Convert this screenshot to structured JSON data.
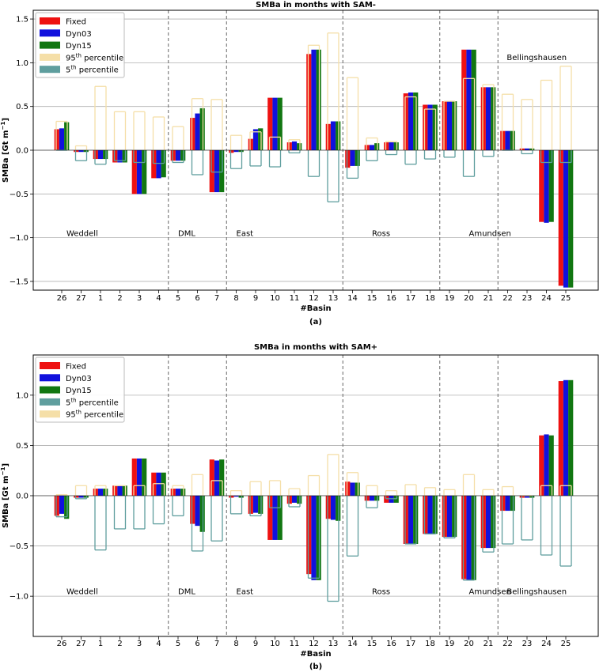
{
  "chart_data": [
    {
      "type": "bar",
      "panel_label": "(a)",
      "title": "SMBa in months with SAM-",
      "xlabel": "#Basin",
      "ylabel": "SMBa [Gt m",
      "ylabel_sup": "−1",
      "ylabel_close": "]",
      "ylim": [
        -1.6,
        1.6
      ],
      "yticks": [
        -1.5,
        -1.0,
        -0.5,
        0.0,
        0.5,
        1.0,
        1.5
      ],
      "ytick_labels": [
        "−1.5",
        "−1.0",
        "−0.5",
        "0.0",
        "0.5",
        "1.0",
        "1.5"
      ],
      "grid": "horizontal",
      "legend_position": "top-left",
      "categories": [
        "26",
        "27",
        "1",
        "2",
        "3",
        "4",
        "5",
        "6",
        "7",
        "8",
        "9",
        "10",
        "11",
        "12",
        "13",
        "14",
        "15",
        "16",
        "17",
        "18",
        "19",
        "20",
        "21",
        "22",
        "23",
        "24",
        "25"
      ],
      "series": [
        {
          "name": "Fixed",
          "color": "#ee1111",
          "values": [
            0.24,
            -0.02,
            -0.1,
            -0.14,
            -0.5,
            -0.32,
            -0.12,
            0.37,
            -0.48,
            -0.03,
            0.13,
            0.6,
            0.09,
            1.1,
            0.3,
            -0.2,
            0.06,
            0.09,
            0.65,
            0.52,
            0.56,
            1.15,
            0.72,
            0.22,
            0.02,
            -0.82,
            -1.55
          ]
        },
        {
          "name": "Dyn03",
          "color": "#1111dd",
          "values": [
            0.25,
            -0.02,
            -0.1,
            -0.14,
            -0.5,
            -0.32,
            -0.12,
            0.42,
            -0.48,
            -0.02,
            0.24,
            0.6,
            0.1,
            1.15,
            0.33,
            -0.18,
            0.06,
            0.09,
            0.66,
            0.52,
            0.56,
            1.15,
            0.72,
            0.22,
            0.02,
            -0.83,
            -1.57
          ]
        },
        {
          "name": "Dyn15",
          "color": "#117711",
          "values": [
            0.32,
            -0.02,
            -0.1,
            -0.14,
            -0.5,
            -0.31,
            -0.12,
            0.48,
            -0.48,
            -0.02,
            0.25,
            0.6,
            0.08,
            1.15,
            0.33,
            -0.18,
            0.08,
            0.09,
            0.66,
            0.52,
            0.56,
            1.15,
            0.72,
            0.22,
            0.02,
            -0.82,
            -1.57
          ]
        }
      ],
      "percentile_95": {
        "name": "95",
        "name_sup": "th",
        "name_suffix": " percentile",
        "color": "#f5dfa8",
        "values": [
          0.33,
          0.05,
          0.73,
          0.44,
          0.44,
          0.38,
          0.27,
          0.59,
          0.58,
          0.17,
          0.21,
          0.15,
          0.12,
          1.2,
          1.34,
          0.83,
          0.14,
          0.1,
          0.61,
          0.47,
          0.56,
          0.82,
          0.75,
          0.64,
          0.58,
          0.8,
          0.96
        ]
      },
      "percentile_5": {
        "name": "5",
        "name_sup": "th",
        "name_suffix": " percentile",
        "color": "#5f9e9e",
        "values": [
          0.0,
          -0.12,
          -0.16,
          -0.12,
          -0.14,
          -0.15,
          -0.14,
          -0.28,
          -0.25,
          -0.21,
          -0.18,
          -0.19,
          -0.03,
          -0.3,
          -0.59,
          -0.32,
          -0.12,
          -0.05,
          -0.16,
          -0.1,
          -0.08,
          -0.3,
          -0.07,
          0.0,
          -0.04,
          -0.14,
          -0.14
        ]
      },
      "dividers_after_index": [
        5,
        8,
        14,
        19,
        22
      ],
      "regions": [
        {
          "label": "Weddell",
          "x_index": 0,
          "value": -0.98
        },
        {
          "label": "DML",
          "x_index": 6,
          "value": -0.98
        },
        {
          "label": "East",
          "x_index": 9,
          "value": -0.98
        },
        {
          "label": "Ross",
          "x_index": 16,
          "value": -0.98
        },
        {
          "label": "Amundsen",
          "x_index": 21,
          "value": -0.98
        },
        {
          "label": "Bellingshausen",
          "x_index": 24.5,
          "value": 1.03
        }
      ]
    },
    {
      "type": "bar",
      "panel_label": "(b)",
      "title": "SMBa in months with SAM+",
      "xlabel": "#Basin",
      "ylabel": "SMBa [Gt m",
      "ylabel_sup": "−1",
      "ylabel_close": "]",
      "ylim": [
        -1.4,
        1.4
      ],
      "yticks": [
        -1.0,
        -0.5,
        0.0,
        0.5,
        1.0
      ],
      "ytick_labels": [
        "−1.0",
        "−0.5",
        "0.0",
        "0.5",
        "1.0"
      ],
      "grid": "horizontal",
      "legend_position": "top-left",
      "categories": [
        "26",
        "27",
        "1",
        "2",
        "3",
        "4",
        "5",
        "6",
        "7",
        "8",
        "9",
        "10",
        "11",
        "12",
        "13",
        "14",
        "15",
        "16",
        "17",
        "18",
        "19",
        "20",
        "21",
        "22",
        "23",
        "24",
        "25"
      ],
      "series": [
        {
          "name": "Fixed",
          "color": "#ee1111",
          "values": [
            -0.2,
            -0.02,
            0.07,
            0.1,
            0.37,
            0.23,
            0.07,
            -0.28,
            0.36,
            -0.02,
            -0.18,
            -0.44,
            -0.08,
            -0.78,
            -0.23,
            0.14,
            -0.05,
            -0.07,
            -0.48,
            -0.38,
            -0.41,
            -0.83,
            -0.52,
            -0.15,
            -0.02,
            0.6,
            1.14
          ]
        },
        {
          "name": "Dyn03",
          "color": "#1111dd",
          "values": [
            -0.18,
            -0.02,
            0.07,
            0.1,
            0.37,
            0.23,
            0.07,
            -0.3,
            0.35,
            -0.01,
            -0.17,
            -0.44,
            -0.07,
            -0.84,
            -0.24,
            0.13,
            -0.05,
            -0.07,
            -0.48,
            -0.38,
            -0.41,
            -0.84,
            -0.52,
            -0.15,
            -0.02,
            0.61,
            1.15
          ]
        },
        {
          "name": "Dyn15",
          "color": "#117711",
          "values": [
            -0.23,
            -0.02,
            0.07,
            0.1,
            0.37,
            0.23,
            0.07,
            -0.36,
            0.36,
            -0.02,
            -0.18,
            -0.44,
            -0.08,
            -0.84,
            -0.25,
            0.13,
            -0.05,
            -0.07,
            -0.48,
            -0.38,
            -0.41,
            -0.84,
            -0.52,
            -0.15,
            -0.02,
            0.6,
            1.15
          ]
        }
      ],
      "percentile_5": {
        "name": "5",
        "name_sup": "th",
        "name_suffix": " percentile",
        "color": "#5f9e9e",
        "values": [
          -0.21,
          -0.03,
          -0.54,
          -0.33,
          -0.33,
          -0.28,
          -0.2,
          -0.55,
          -0.45,
          -0.18,
          -0.2,
          -0.12,
          -0.11,
          -0.82,
          -1.05,
          -0.6,
          -0.12,
          -0.03,
          -0.48,
          -0.38,
          -0.42,
          -0.84,
          -0.56,
          -0.48,
          -0.44,
          -0.59,
          -0.7
        ]
      },
      "percentile_95": {
        "name": "95",
        "name_sup": "th",
        "name_suffix": " percentile",
        "color": "#f5dfa8",
        "values": [
          0.01,
          0.1,
          0.1,
          0.1,
          0.1,
          0.12,
          0.1,
          0.21,
          0.15,
          0.05,
          0.14,
          0.15,
          0.07,
          0.2,
          0.41,
          0.23,
          0.1,
          0.05,
          0.11,
          0.08,
          0.06,
          0.21,
          0.06,
          0.09,
          0.0,
          0.1,
          0.1
        ]
      },
      "dividers_after_index": [
        5,
        8,
        14,
        19,
        22
      ],
      "regions": [
        {
          "label": "Weddell",
          "x_index": 0,
          "value": -0.98
        },
        {
          "label": "DML",
          "x_index": 6,
          "value": -0.98
        },
        {
          "label": "East",
          "x_index": 9,
          "value": -0.98
        },
        {
          "label": "Ross",
          "x_index": 16,
          "value": -0.98
        },
        {
          "label": "Amundsen",
          "x_index": 21,
          "value": -0.98
        },
        {
          "label": "Bellingshausen",
          "x_index": 24.5,
          "value": -0.98
        }
      ]
    }
  ]
}
